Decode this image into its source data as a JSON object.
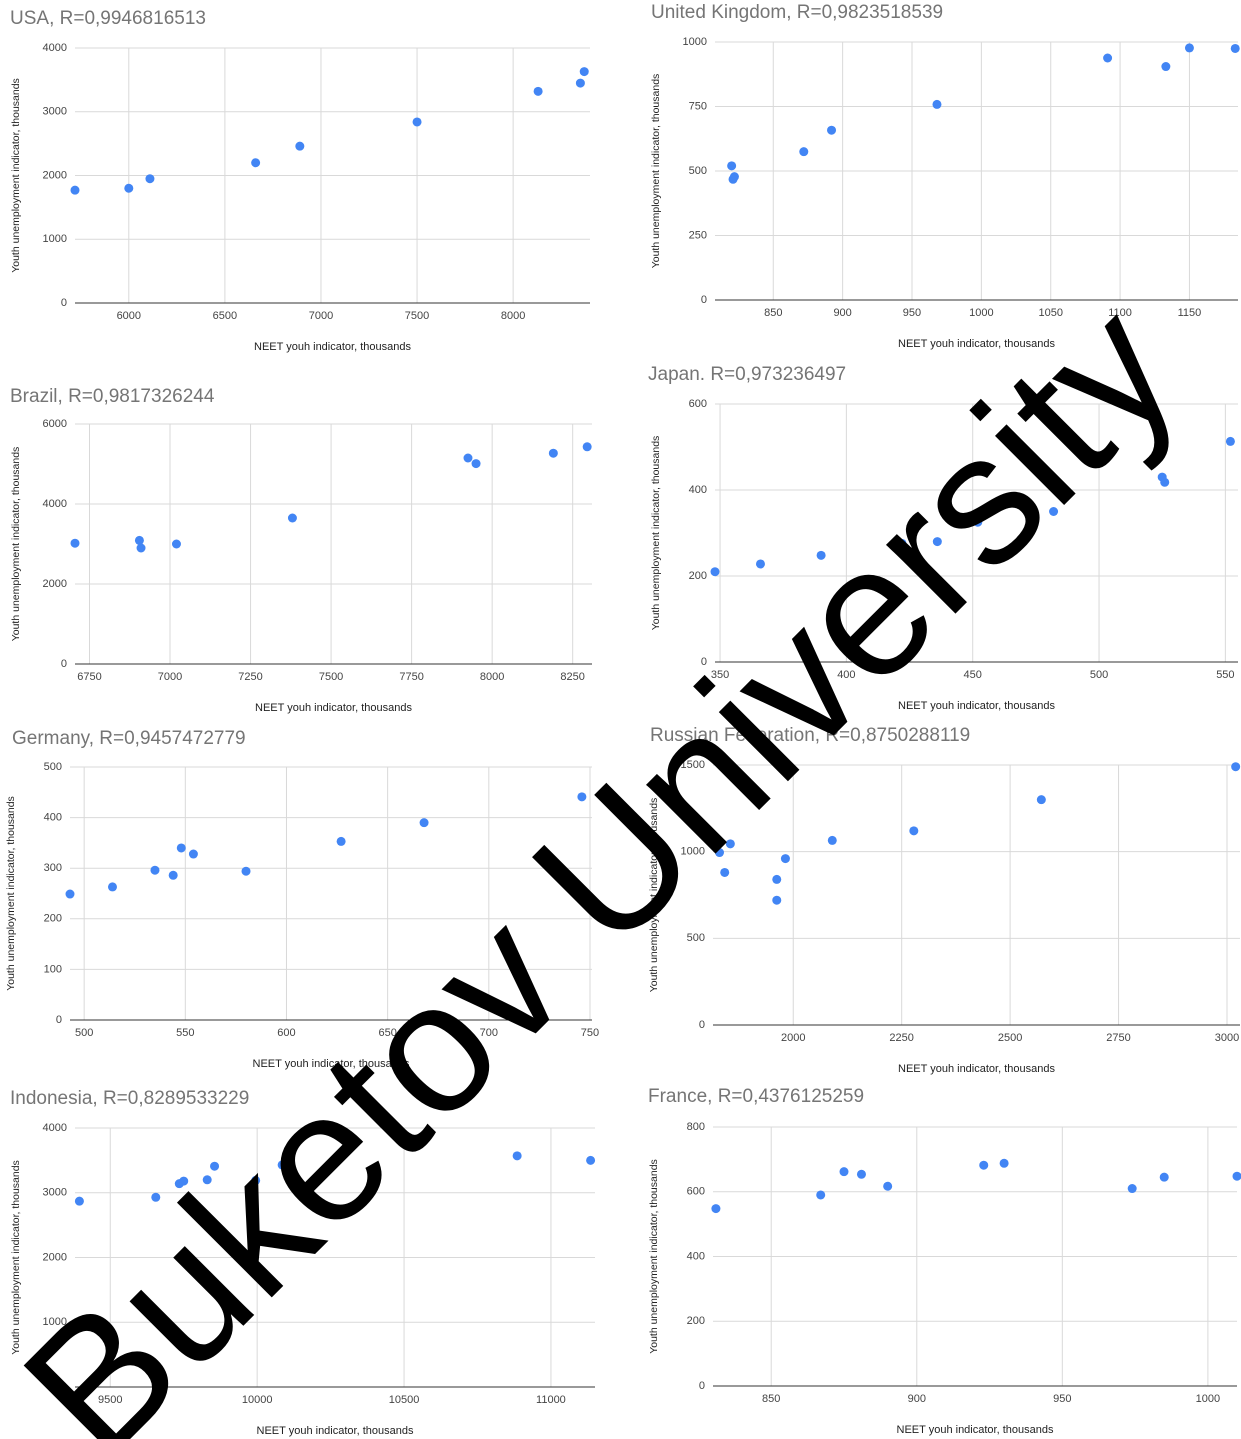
{
  "watermark": "Buketov University",
  "chart_data": [
    {
      "type": "scatter",
      "title": "USA, R=0,9946816513",
      "xlabel": "NEET youh indicator, thousands",
      "ylabel": "Youth unemployment indicator, thousands",
      "xlim": [
        5720,
        8400
      ],
      "ylim": [
        0,
        4000
      ],
      "xticks": [
        6000,
        6500,
        7000,
        7500,
        8000
      ],
      "yticks": [
        0,
        1000,
        2000,
        3000,
        4000
      ],
      "xtick_labels": [
        "6000",
        "6500",
        "7000",
        "7500",
        "8000"
      ],
      "ytick_labels": [
        "0",
        "1000",
        "2000",
        "3000",
        "4000"
      ],
      "grid": true,
      "point_color": "#4285f4",
      "x": [
        5720,
        6000,
        6110,
        6660,
        6890,
        7500,
        8130,
        8350,
        8370
      ],
      "y": [
        1770,
        1800,
        1950,
        2200,
        2460,
        2840,
        3320,
        3450,
        3630
      ]
    },
    {
      "type": "scatter",
      "title": "United Kingdom, R=0,9823518539",
      "xlabel": "NEET youh indicator, thousands",
      "ylabel": "Youth unemployment indicator, thousands",
      "xlim": [
        808,
        1185
      ],
      "ylim": [
        0,
        1000
      ],
      "xticks": [
        850,
        900,
        950,
        1000,
        1050,
        1100,
        1150
      ],
      "yticks": [
        0,
        250,
        500,
        750,
        1000
      ],
      "xtick_labels": [
        "850",
        "900",
        "950",
        "1000",
        "1050",
        "1100",
        "1150"
      ],
      "ytick_labels": [
        "0",
        "250",
        "500",
        "750",
        "1000"
      ],
      "grid": true,
      "point_color": "#4285f4",
      "x": [
        820,
        822,
        821,
        872,
        892,
        968,
        1091,
        1133,
        1150,
        1183
      ],
      "y": [
        520,
        478,
        468,
        575,
        658,
        758,
        938,
        905,
        977,
        975
      ]
    },
    {
      "type": "scatter",
      "title": "Brazil, R=0,9817326244",
      "xlabel": "NEET youh indicator, thousands",
      "ylabel": "Youth unemployment indicator, thousands",
      "xlim": [
        6705,
        8310
      ],
      "ylim": [
        0,
        6000
      ],
      "xticks": [
        6750,
        7000,
        7250,
        7500,
        7750,
        8000,
        8250
      ],
      "yticks": [
        0,
        2000,
        4000,
        6000
      ],
      "xtick_labels": [
        "6750",
        "7000",
        "7250",
        "7500",
        "7750",
        "8000",
        "8250"
      ],
      "ytick_labels": [
        "0",
        "2000",
        "4000",
        "6000"
      ],
      "grid": true,
      "point_color": "#4285f4",
      "x": [
        6705,
        6905,
        6910,
        7020,
        7380,
        7925,
        7950,
        8190,
        8295
      ],
      "y": [
        3020,
        3090,
        2900,
        3000,
        3650,
        5150,
        5010,
        5270,
        5430
      ]
    },
    {
      "type": "scatter",
      "title": "Japan. R=0,973236497",
      "xlabel": "NEET youh indicator, thousands",
      "ylabel": "Youth unemployment indicator, thousands",
      "xlim": [
        348,
        555
      ],
      "ylim": [
        0,
        600
      ],
      "xticks": [
        350,
        400,
        450,
        500,
        550
      ],
      "yticks": [
        0,
        200,
        400,
        600
      ],
      "xtick_labels": [
        "350",
        "400",
        "450",
        "500",
        "550"
      ],
      "ytick_labels": [
        "0",
        "200",
        "400",
        "600"
      ],
      "grid": true,
      "point_color": "#4285f4",
      "x": [
        348,
        366,
        390,
        422,
        436,
        452,
        482,
        525,
        526,
        552
      ],
      "y": [
        210,
        228,
        248,
        276,
        280,
        325,
        350,
        430,
        418,
        513
      ]
    },
    {
      "type": "scatter",
      "title": "Germany, R=0,9457472779",
      "xlabel": "NEET youh indicator, thousands",
      "ylabel": "Youth unemployment indicator, thousands",
      "xlim": [
        493,
        751
      ],
      "ylim": [
        0,
        500
      ],
      "xticks": [
        500,
        550,
        600,
        650,
        700,
        750
      ],
      "yticks": [
        0,
        100,
        200,
        300,
        400,
        500
      ],
      "xtick_labels": [
        "500",
        "550",
        "600",
        "650",
        "700",
        "750"
      ],
      "ytick_labels": [
        "0",
        "100",
        "200",
        "300",
        "400",
        "500"
      ],
      "grid": true,
      "point_color": "#4285f4",
      "x": [
        493,
        514,
        535,
        544,
        548,
        554,
        580,
        627,
        668,
        746
      ],
      "y": [
        249,
        263,
        296,
        286,
        340,
        328,
        294,
        353,
        390,
        441
      ]
    },
    {
      "type": "scatter",
      "title": "Russian Federation, R=0,8750288119",
      "xlabel": "NEET youh indicator, thousands",
      "ylabel": "Youth unemployment indicator, thousands",
      "xlim": [
        1815,
        3030
      ],
      "ylim": [
        0,
        1500
      ],
      "xticks": [
        2000,
        2250,
        2500,
        2750,
        3000
      ],
      "yticks": [
        0,
        500,
        1000,
        1500
      ],
      "xtick_labels": [
        "2000",
        "2250",
        "2500",
        "2750",
        "3000"
      ],
      "ytick_labels": [
        "0",
        "500",
        "1000",
        "1500"
      ],
      "grid": true,
      "point_color": "#4285f4",
      "x": [
        1830,
        1855,
        1842,
        1962,
        1962,
        1982,
        2090,
        2278,
        2572,
        3020
      ],
      "y": [
        995,
        1045,
        880,
        840,
        720,
        960,
        1065,
        1120,
        1300,
        1490
      ]
    },
    {
      "type": "scatter",
      "title": "Indonesia, R=0,8289533229",
      "xlabel": "NEET youh indicator, thousands",
      "ylabel": "Youth unemployment indicator, thousands",
      "xlim": [
        9380,
        11150
      ],
      "ylim": [
        0,
        4000
      ],
      "xticks": [
        9500,
        10000,
        10500,
        11000
      ],
      "yticks": [
        0,
        1000,
        2000,
        3000,
        4000
      ],
      "xtick_labels": [
        "9500",
        "10000",
        "10500",
        "11000"
      ],
      "ytick_labels": [
        "0",
        "1000",
        "2000",
        "3000",
        "4000"
      ],
      "grid": true,
      "point_color": "#4285f4",
      "x": [
        9395,
        9655,
        9735,
        9750,
        9830,
        9855,
        9995,
        10085,
        10885,
        11135
      ],
      "y": [
        2870,
        2930,
        3140,
        3180,
        3200,
        3410,
        3190,
        3430,
        3570,
        3500
      ]
    },
    {
      "type": "scatter",
      "title": "France, R=0,4376125259",
      "xlabel": "NEET youh indicator, thousands",
      "ylabel": "Youth unemployment indicator, thousands",
      "xlim": [
        830,
        1010
      ],
      "ylim": [
        0,
        800
      ],
      "xticks": [
        850,
        900,
        950,
        1000
      ],
      "yticks": [
        0,
        200,
        400,
        600,
        800
      ],
      "xtick_labels": [
        "850",
        "900",
        "950",
        "1000"
      ],
      "ytick_labels": [
        "0",
        "200",
        "400",
        "600",
        "800"
      ],
      "grid": true,
      "point_color": "#4285f4",
      "x": [
        831,
        867,
        875,
        881,
        890,
        923,
        930,
        974,
        985,
        1010
      ],
      "y": [
        548,
        590,
        662,
        654,
        617,
        682,
        688,
        610,
        645,
        648
      ]
    }
  ]
}
